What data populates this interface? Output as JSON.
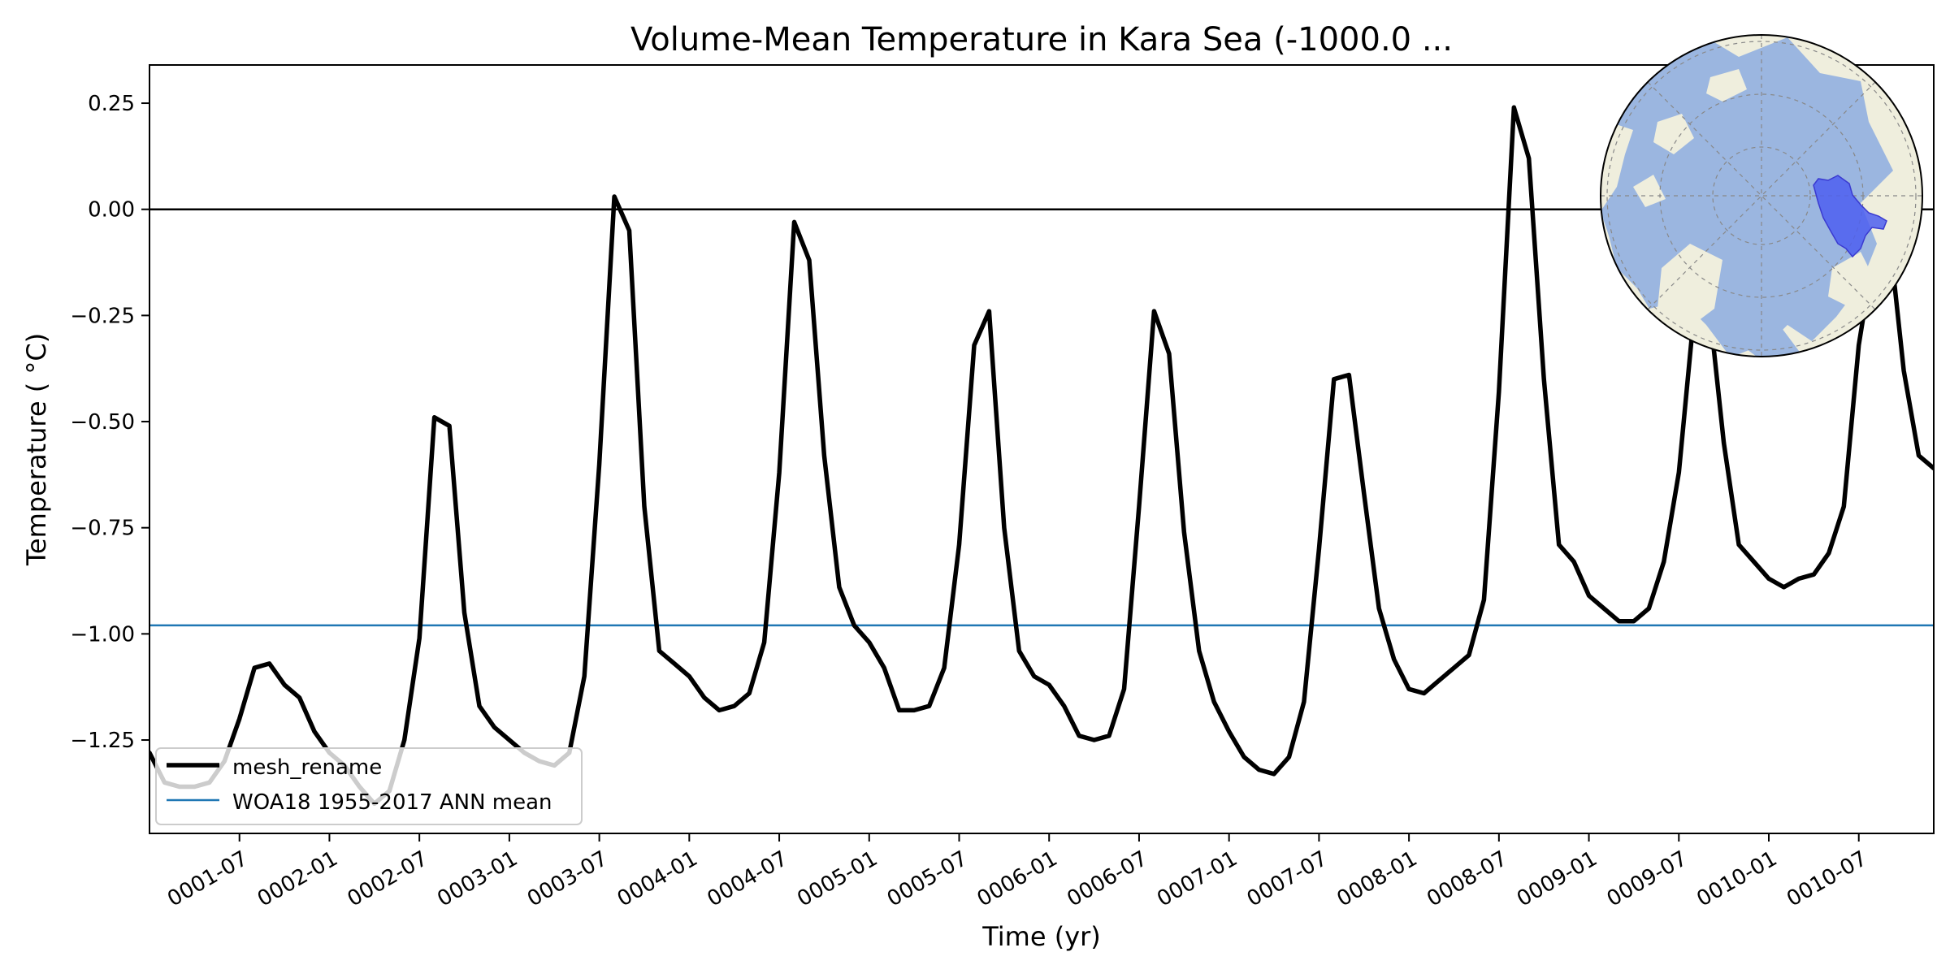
{
  "chart_data": {
    "type": "line",
    "title": "Volume-Mean Temperature in Kara Sea (-1000.0 ...",
    "xlabel": "Time (yr)",
    "ylabel": "Temperature ( °C)",
    "x_tick_labels": [
      "0001-07",
      "0002-01",
      "0002-07",
      "0003-01",
      "0003-07",
      "0004-01",
      "0004-07",
      "0005-01",
      "0005-07",
      "0006-01",
      "0006-07",
      "0007-01",
      "0007-07",
      "0008-01",
      "0008-07",
      "0009-01",
      "0009-07",
      "0010-01",
      "0010-07"
    ],
    "y_ticks": [
      0.25,
      0.0,
      -0.25,
      -0.5,
      -0.75,
      -1.0,
      -1.25
    ],
    "y_tick_labels": [
      "0.25",
      "0.00",
      "−0.25",
      "−0.50",
      "−0.75",
      "−1.00",
      "−1.25"
    ],
    "xlim_months": [
      1,
      120
    ],
    "ylim": [
      -1.47,
      0.34
    ],
    "zero_line": 0.0,
    "legend_position": "lower-left",
    "series": [
      {
        "name": "mesh_rename",
        "color": "#000000",
        "x_months": [
          1,
          2,
          3,
          4,
          5,
          6,
          7,
          8,
          9,
          10,
          11,
          12,
          13,
          14,
          15,
          16,
          17,
          18,
          19,
          20,
          21,
          22,
          23,
          24,
          25,
          26,
          27,
          28,
          29,
          30,
          31,
          32,
          33,
          34,
          35,
          36,
          37,
          38,
          39,
          40,
          41,
          42,
          43,
          44,
          45,
          46,
          47,
          48,
          49,
          50,
          51,
          52,
          53,
          54,
          55,
          56,
          57,
          58,
          59,
          60,
          61,
          62,
          63,
          64,
          65,
          66,
          67,
          68,
          69,
          70,
          71,
          72,
          73,
          74,
          75,
          76,
          77,
          78,
          79,
          80,
          81,
          82,
          83,
          84,
          85,
          86,
          87,
          88,
          89,
          90,
          91,
          92,
          93,
          94,
          95,
          96,
          97,
          98,
          99,
          100,
          101,
          102,
          103,
          104,
          105,
          106,
          107,
          108,
          109,
          110,
          111,
          112,
          113,
          114,
          115,
          116,
          117,
          118,
          119,
          120
        ],
        "values": [
          -1.28,
          -1.35,
          -1.36,
          -1.36,
          -1.35,
          -1.3,
          -1.2,
          -1.08,
          -1.07,
          -1.12,
          -1.15,
          -1.23,
          -1.28,
          -1.31,
          -1.36,
          -1.4,
          -1.37,
          -1.25,
          -1.01,
          -0.49,
          -0.51,
          -0.95,
          -1.17,
          -1.22,
          -1.25,
          -1.28,
          -1.3,
          -1.31,
          -1.28,
          -1.1,
          -0.6,
          0.03,
          -0.05,
          -0.7,
          -1.04,
          -1.07,
          -1.1,
          -1.15,
          -1.18,
          -1.17,
          -1.14,
          -1.02,
          -0.62,
          -0.03,
          -0.12,
          -0.58,
          -0.89,
          -0.98,
          -1.02,
          -1.08,
          -1.18,
          -1.18,
          -1.17,
          -1.08,
          -0.79,
          -0.32,
          -0.24,
          -0.75,
          -1.04,
          -1.1,
          -1.12,
          -1.17,
          -1.24,
          -1.25,
          -1.24,
          -1.13,
          -0.7,
          -0.24,
          -0.34,
          -0.76,
          -1.04,
          -1.16,
          -1.23,
          -1.29,
          -1.32,
          -1.33,
          -1.29,
          -1.16,
          -0.8,
          -0.4,
          -0.39,
          -0.67,
          -0.94,
          -1.06,
          -1.13,
          -1.14,
          -1.11,
          -1.08,
          -1.05,
          -0.92,
          -0.43,
          0.24,
          0.12,
          -0.4,
          -0.79,
          -0.83,
          -0.91,
          -0.94,
          -0.97,
          -0.97,
          -0.94,
          -0.83,
          -0.62,
          -0.25,
          -0.22,
          -0.55,
          -0.79,
          -0.83,
          -0.87,
          -0.89,
          -0.87,
          -0.86,
          -0.81,
          -0.7,
          -0.32,
          -0.1,
          -0.05,
          -0.38,
          -0.58,
          -0.61
        ]
      },
      {
        "name": "WOA18 1955-2017 ANN mean",
        "color": "#1f77b4",
        "constant": -0.98
      }
    ]
  },
  "inset_map": {
    "icon": "north-polar-stereographic-map-icon",
    "ocean_color": "#9bb6e0",
    "land_color": "#efeedd",
    "region_color": "#4d5ff0"
  }
}
